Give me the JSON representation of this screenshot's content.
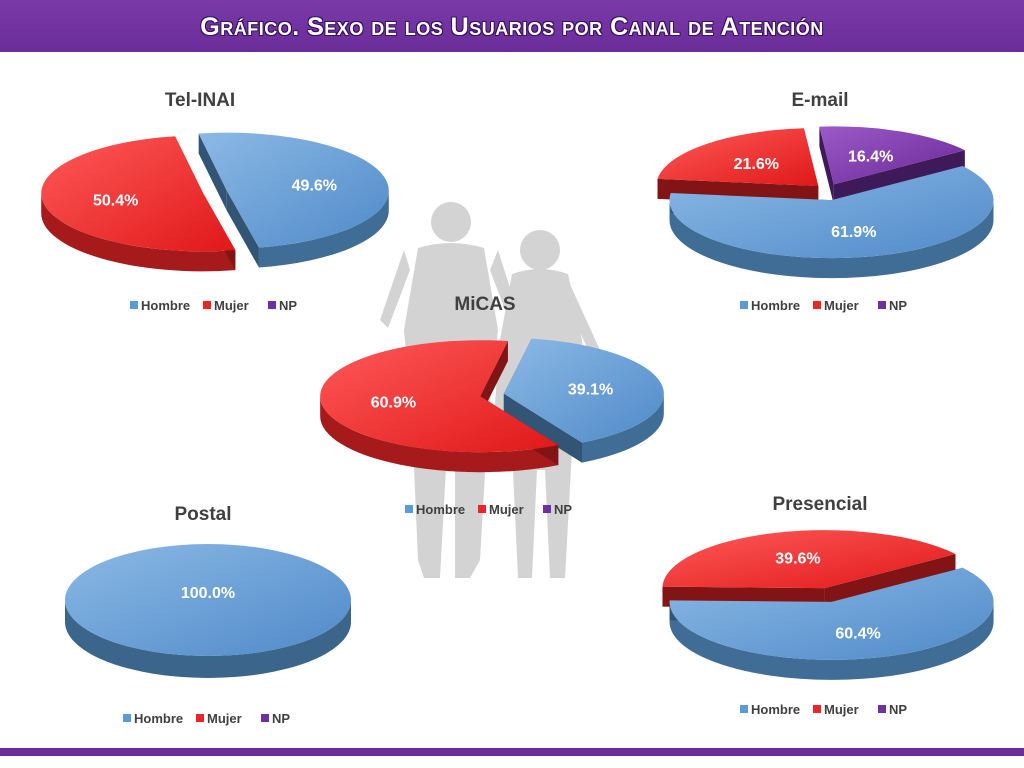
{
  "header": {
    "title": "Gráfico. Sexo de los Usuarios por Canal de Atención"
  },
  "colors": {
    "Hombre": "#5b9bd5",
    "Mujer": "#ee2526",
    "NP": "#7030a0",
    "bar": "#6a2d98"
  },
  "legend": [
    "Hombre",
    "Mujer",
    "NP"
  ],
  "chart_data": [
    {
      "type": "pie",
      "title": "Tel-INAI",
      "slices": [
        {
          "category": "Hombre",
          "value": 49.6,
          "label": "49.6%"
        },
        {
          "category": "Mujer",
          "value": 50.4,
          "label": "50.4%"
        }
      ]
    },
    {
      "type": "pie",
      "title": "E-mail",
      "slices": [
        {
          "category": "Hombre",
          "value": 61.9,
          "label": "61.9%"
        },
        {
          "category": "Mujer",
          "value": 21.6,
          "label": "21.6%"
        },
        {
          "category": "NP",
          "value": 16.4,
          "label": "16.4%"
        }
      ]
    },
    {
      "type": "pie",
      "title": "MiCAS",
      "slices": [
        {
          "category": "Hombre",
          "value": 39.1,
          "label": "39.1%"
        },
        {
          "category": "Mujer",
          "value": 60.9,
          "label": "60.9%"
        }
      ]
    },
    {
      "type": "pie",
      "title": "Postal",
      "slices": [
        {
          "category": "Hombre",
          "value": 100.0,
          "label": "100.0%"
        }
      ]
    },
    {
      "type": "pie",
      "title": "Presencial",
      "slices": [
        {
          "category": "Hombre",
          "value": 60.4,
          "label": "60.4%"
        },
        {
          "category": "Mujer",
          "value": 39.6,
          "label": "39.6%"
        }
      ]
    }
  ]
}
